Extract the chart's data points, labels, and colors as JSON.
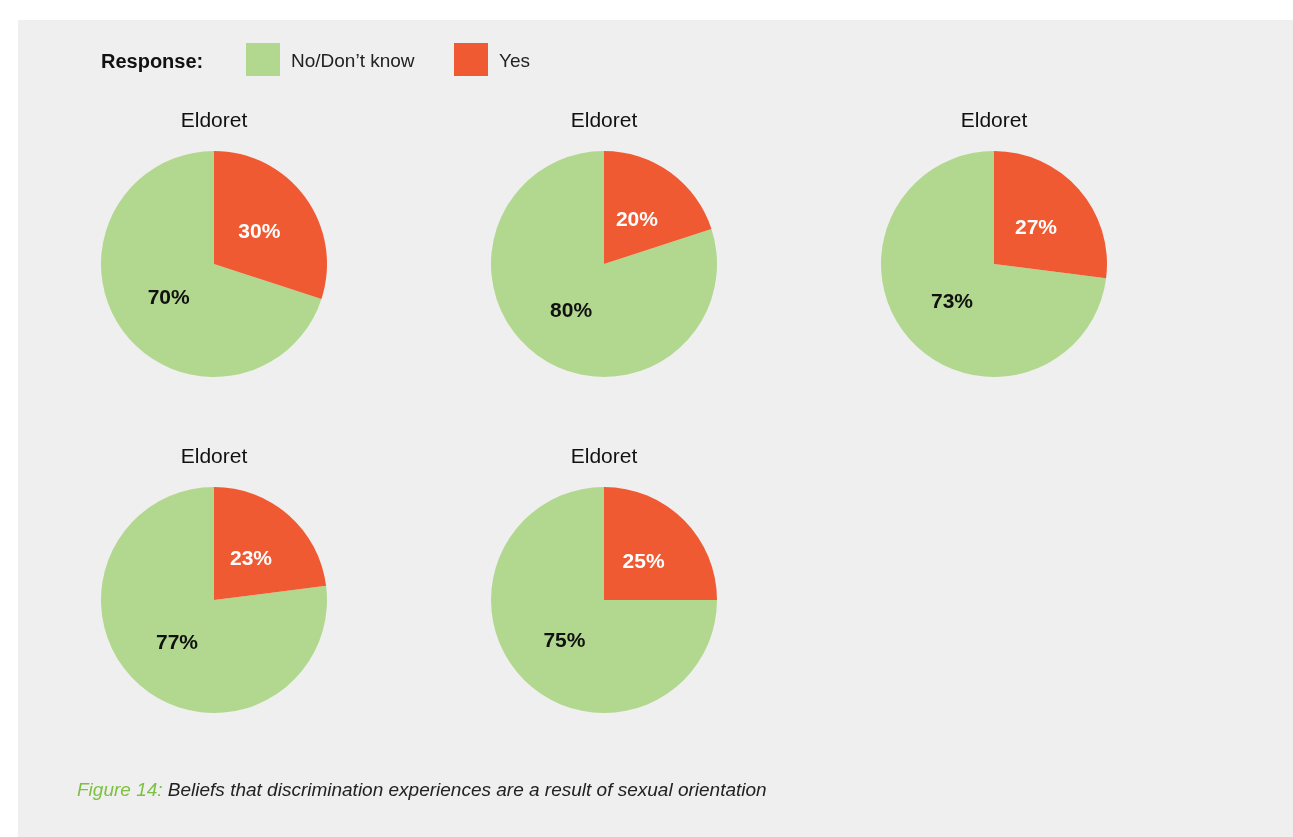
{
  "chart_data": [
    {
      "type": "pie",
      "title": "Eldoret",
      "categories": [
        "No/Don’t know",
        "Yes"
      ],
      "values": [
        70,
        30
      ],
      "colors": [
        "#b1d88e",
        "#f05a33"
      ],
      "value_labels": [
        "70%",
        "30%"
      ],
      "legend": "top right",
      "legend_title": "Response:"
    },
    {
      "type": "pie",
      "title": "Eldoret",
      "categories": [
        null,
        null
      ],
      "values": [
        80,
        20
      ],
      "colors": [
        "#b1d88e",
        "#f05a33"
      ],
      "value_labels": [
        "80%",
        "20%"
      ]
    },
    {
      "type": "pie",
      "title": "Eldoret",
      "categories": [
        null,
        null
      ],
      "values": [
        73,
        27
      ],
      "colors": [
        "#b1d88e",
        "#f05a33"
      ],
      "value_labels": [
        "73%",
        "27%"
      ]
    },
    {
      "type": "pie",
      "title": "Eldoret",
      "categories": [
        null,
        null
      ],
      "values": [
        77,
        23
      ],
      "colors": [
        "#b1d88e",
        "#f05a33"
      ],
      "value_labels": [
        "77%",
        "23%"
      ]
    },
    {
      "type": "pie",
      "title": "Eldoret",
      "categories": [
        null,
        null
      ],
      "values": [
        75,
        25
      ],
      "colors": [
        "#b1d88e",
        "#f05a33"
      ],
      "value_labels": [
        "75%",
        "25%"
      ],
      "annotations": [
        "Figure 14: Beliefs that discrimination experiences are a result of sexual orientation"
      ]
    }
  ]
}
